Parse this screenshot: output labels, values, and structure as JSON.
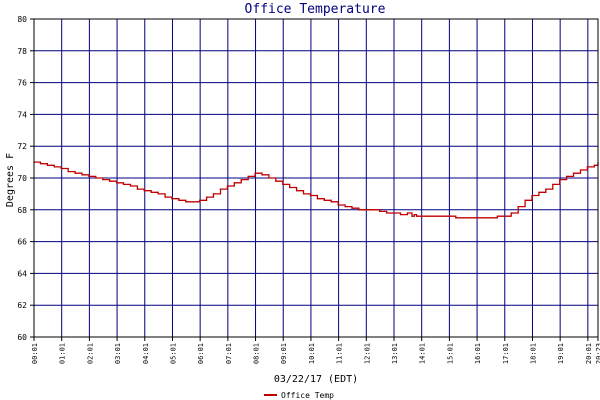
{
  "chart_data": {
    "type": "line",
    "title": "Office Temperature",
    "xlabel": "03/22/17 (EDT)",
    "ylabel": "Degrees F",
    "ylim": [
      60,
      80
    ],
    "yticks": [
      60,
      62,
      64,
      66,
      68,
      70,
      72,
      74,
      76,
      78,
      80
    ],
    "xlim": [
      "00:01",
      "20:23"
    ],
    "xticks": [
      "00:01",
      "01:01",
      "02:01",
      "03:01",
      "04:01",
      "05:01",
      "06:01",
      "07:01",
      "08:01",
      "09:01",
      "10:01",
      "11:01",
      "12:01",
      "13:01",
      "14:01",
      "15:01",
      "16:01",
      "17:01",
      "18:01",
      "19:01",
      "20:01",
      "20:23"
    ],
    "grid": true,
    "legend_position": "bottom-left",
    "colors": {
      "background": "#ffffff",
      "grid": "#000080",
      "axes": "#000000",
      "title": "#000080",
      "series": "#c00000"
    },
    "series": [
      {
        "name": "Office Temp",
        "x": [
          "00:01",
          "00:15",
          "00:30",
          "00:45",
          "01:00",
          "01:15",
          "01:30",
          "01:45",
          "02:00",
          "02:15",
          "02:30",
          "02:45",
          "03:00",
          "03:15",
          "03:30",
          "03:45",
          "04:00",
          "04:15",
          "04:30",
          "04:45",
          "05:00",
          "05:15",
          "05:30",
          "05:45",
          "06:00",
          "06:15",
          "06:30",
          "06:45",
          "07:00",
          "07:15",
          "07:30",
          "07:45",
          "08:00",
          "08:15",
          "08:30",
          "08:45",
          "09:00",
          "09:15",
          "09:30",
          "09:45",
          "10:00",
          "10:15",
          "10:30",
          "10:45",
          "11:00",
          "11:15",
          "11:30",
          "11:45",
          "12:00",
          "12:15",
          "12:30",
          "12:45",
          "13:00",
          "13:15",
          "13:30",
          "13:40",
          "13:45",
          "13:50",
          "14:00",
          "14:15",
          "14:30",
          "14:45",
          "15:00",
          "15:15",
          "15:30",
          "15:45",
          "16:00",
          "16:15",
          "16:30",
          "16:45",
          "17:00",
          "17:15",
          "17:30",
          "17:45",
          "18:00",
          "18:15",
          "18:30",
          "18:45",
          "19:00",
          "19:15",
          "19:30",
          "19:45",
          "20:00",
          "20:15",
          "20:23"
        ],
        "y": [
          71.0,
          70.9,
          70.8,
          70.7,
          70.6,
          70.4,
          70.3,
          70.2,
          70.1,
          70.0,
          69.9,
          69.8,
          69.7,
          69.6,
          69.5,
          69.3,
          69.2,
          69.1,
          69.0,
          68.8,
          68.7,
          68.6,
          68.5,
          68.5,
          68.6,
          68.8,
          69.0,
          69.3,
          69.5,
          69.7,
          69.9,
          70.1,
          70.3,
          70.2,
          70.0,
          69.8,
          69.6,
          69.4,
          69.2,
          69.0,
          68.9,
          68.7,
          68.6,
          68.5,
          68.3,
          68.2,
          68.1,
          68.0,
          68.0,
          68.0,
          67.9,
          67.8,
          67.8,
          67.7,
          67.8,
          67.6,
          67.7,
          67.6,
          67.6,
          67.6,
          67.6,
          67.6,
          67.6,
          67.5,
          67.5,
          67.5,
          67.5,
          67.5,
          67.5,
          67.6,
          67.6,
          67.8,
          68.2,
          68.6,
          68.9,
          69.1,
          69.3,
          69.6,
          69.9,
          70.1,
          70.3,
          70.5,
          70.7,
          70.8,
          71.0
        ]
      }
    ]
  }
}
